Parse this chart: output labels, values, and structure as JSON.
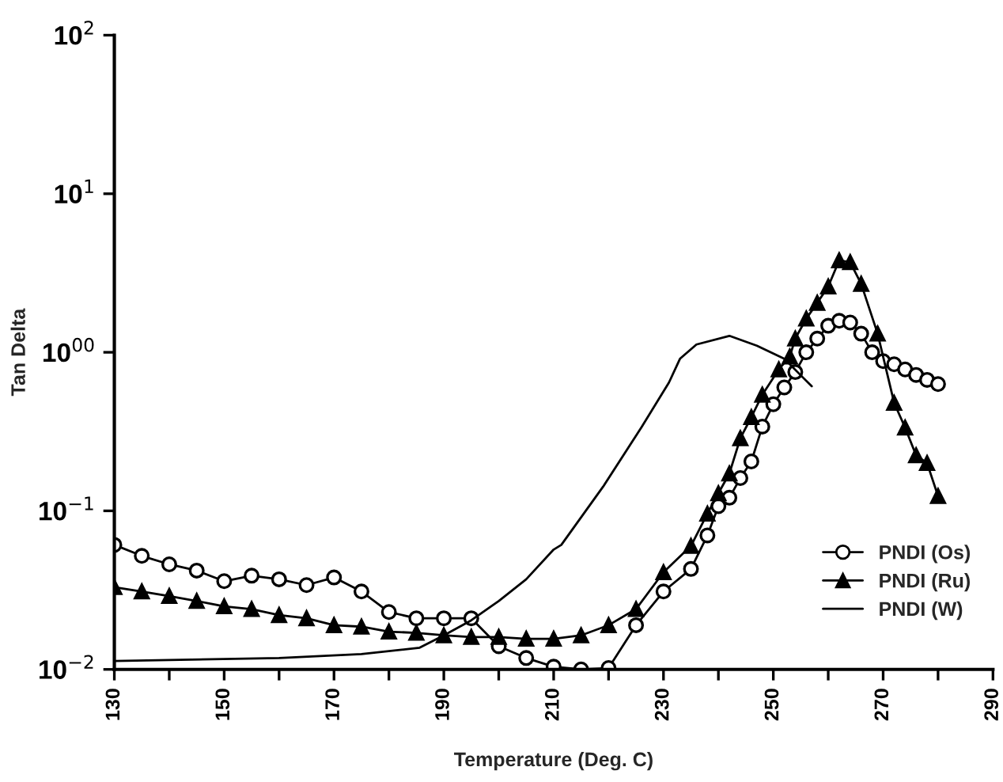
{
  "chart_data": {
    "type": "line",
    "xlabel": "Temperature (Deg. C)",
    "ylabel": "Tan Delta",
    "log": "y",
    "xlim": [
      130,
      290
    ],
    "ylim": [
      0.01,
      100
    ],
    "xticks": [
      130,
      {
        "value": 140,
        "label": null
      },
      150,
      {
        "value": 160,
        "label": null
      },
      170,
      {
        "value": 180,
        "label": null
      },
      190,
      {
        "value": 200,
        "label": null
      },
      210,
      {
        "value": 220,
        "label": null
      },
      230,
      {
        "value": 240,
        "label": null
      },
      250,
      {
        "value": 260,
        "label": null
      },
      270,
      {
        "value": 280,
        "label": null
      },
      290
    ],
    "yticks": [
      {
        "value": 0.01,
        "label": "10$^{−2}$"
      },
      {
        "value": 0.1,
        "label": "10$^{−1}$"
      },
      {
        "value": 1,
        "label": "10$^{00}$"
      },
      {
        "value": 10,
        "label": "10$^{1}$"
      },
      {
        "value": 100,
        "label": "10$^{2}$"
      }
    ],
    "grid": false,
    "legend": "lower right",
    "line_style": "solid",
    "series": [
      {
        "name": "PNDI (Os)",
        "color": "#000000",
        "marker": "circle",
        "x": [
          130,
          135,
          140,
          145,
          150,
          155,
          160,
          165,
          170,
          175,
          180,
          185,
          190,
          195,
          200,
          205,
          210,
          215,
          220,
          225,
          230,
          235,
          238,
          240,
          242,
          244,
          246,
          248,
          250,
          252,
          254,
          256,
          258,
          260,
          262,
          264,
          266,
          268,
          270,
          272,
          274,
          276,
          278,
          280
        ],
        "values": [
          0.061,
          0.052,
          0.046,
          0.042,
          0.036,
          0.039,
          0.037,
          0.034,
          0.038,
          0.031,
          0.023,
          0.021,
          0.021,
          0.021,
          0.014,
          0.0118,
          0.0104,
          0.01,
          0.0102,
          0.019,
          0.031,
          0.043,
          0.07,
          0.107,
          0.121,
          0.161,
          0.205,
          0.34,
          0.47,
          0.6,
          0.75,
          1.0,
          1.22,
          1.47,
          1.58,
          1.54,
          1.31,
          1.0,
          0.88,
          0.84,
          0.78,
          0.72,
          0.67,
          0.63
        ]
      },
      {
        "name": "PNDI (Ru)",
        "color": "#000000",
        "marker": "triangle",
        "x": [
          130,
          135,
          140,
          145,
          150,
          155,
          160,
          165,
          170,
          175,
          180,
          185,
          190,
          195,
          200,
          205,
          210,
          215,
          220,
          225,
          230,
          235,
          238,
          240,
          242,
          244,
          246,
          248,
          251,
          253,
          254,
          256,
          258,
          260,
          262,
          264,
          266,
          269,
          272,
          274,
          276,
          278,
          280
        ],
        "values": [
          0.033,
          0.031,
          0.029,
          0.027,
          0.025,
          0.024,
          0.022,
          0.021,
          0.019,
          0.0186,
          0.0173,
          0.017,
          0.0164,
          0.016,
          0.016,
          0.0156,
          0.0156,
          0.0164,
          0.019,
          0.024,
          0.041,
          0.06,
          0.096,
          0.129,
          0.172,
          0.287,
          0.39,
          0.54,
          0.78,
          0.94,
          1.22,
          1.63,
          2.05,
          2.6,
          3.8,
          3.7,
          2.7,
          1.31,
          0.48,
          0.335,
          0.224,
          0.2,
          0.124
        ]
      },
      {
        "name": "PNDI (W)",
        "color": "#000000",
        "marker": "none",
        "x": [
          130,
          160,
          175,
          185.6,
          190,
          195,
          200,
          205,
          210,
          211.4,
          219,
          226,
          231,
          233,
          236,
          242,
          247,
          252,
          257
        ],
        "values": [
          0.0113,
          0.0118,
          0.0125,
          0.0137,
          0.0164,
          0.0204,
          0.027,
          0.037,
          0.057,
          0.061,
          0.142,
          0.337,
          0.645,
          0.91,
          1.12,
          1.27,
          1.1,
          0.91,
          0.61
        ]
      }
    ]
  }
}
